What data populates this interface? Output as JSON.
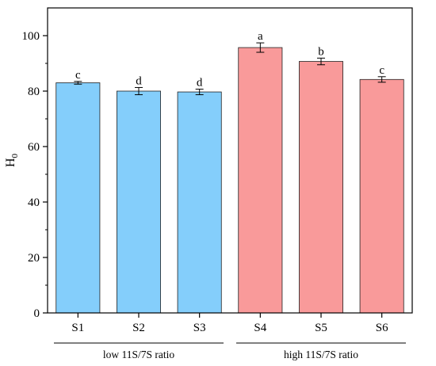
{
  "chart_data": {
    "type": "bar",
    "ylabel": "H",
    "ylabel_subscript": "0",
    "xlabel": "",
    "ylim": [
      0,
      110
    ],
    "yticks": [
      0,
      20,
      40,
      60,
      80,
      100
    ],
    "categories": [
      "S1",
      "S2",
      "S3",
      "S4",
      "S5",
      "S6"
    ],
    "values": [
      83.0,
      80.0,
      79.7,
      95.7,
      90.7,
      84.2
    ],
    "errors": [
      0.5,
      1.3,
      1.0,
      1.7,
      1.2,
      1.0
    ],
    "significance_letters": [
      "c",
      "d",
      "d",
      "a",
      "b",
      "c"
    ],
    "bar_colors": [
      "#84CEFB",
      "#84CEFB",
      "#84CEFB",
      "#F99A9A",
      "#F99A9A",
      "#F99A9A"
    ],
    "groups": [
      {
        "label": "low 11S/7S ratio",
        "members": [
          "S1",
          "S2",
          "S3"
        ]
      },
      {
        "label": "high 11S/7S ratio",
        "members": [
          "S4",
          "S5",
          "S6"
        ]
      }
    ],
    "grid": false,
    "legend": "none"
  }
}
